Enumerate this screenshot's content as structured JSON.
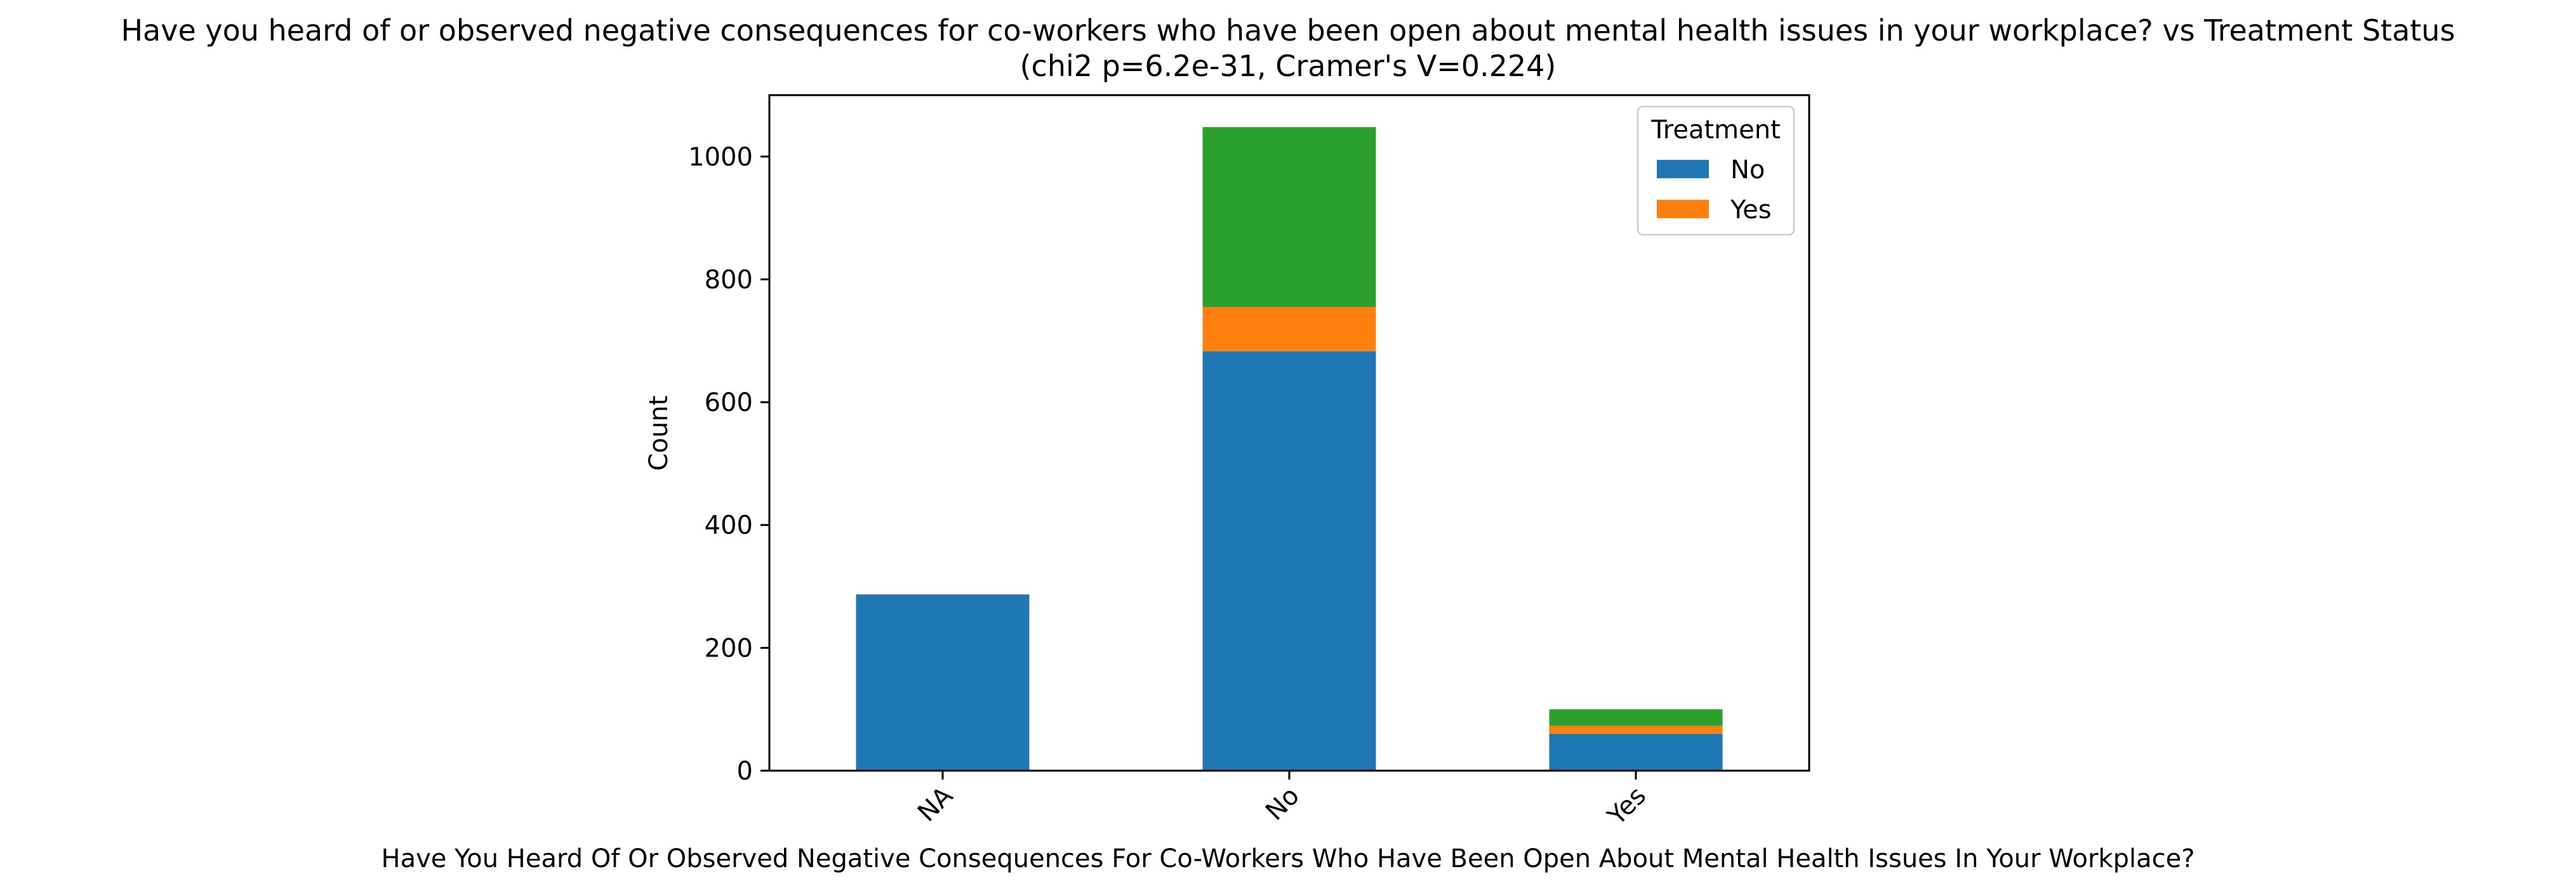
{
  "chart_data": {
    "type": "bar",
    "stacked": true,
    "title": "Have you heard of or observed negative consequences for co-workers who have been open about mental health issues in your workplace? vs Treatment Status",
    "subtitle": "(chi2 p=6.2e-31, Cramer's V=0.224)",
    "xlabel": "Have You Heard Of Or Observed Negative Consequences For Co-Workers Who Have Been Open About Mental Health Issues In Your Workplace?",
    "ylabel": "Count",
    "categories": [
      "NA",
      "No",
      "Yes"
    ],
    "ylim": [
      0,
      1100
    ],
    "yticks": [
      0,
      200,
      400,
      600,
      800,
      1000
    ],
    "grid": false,
    "legend": {
      "title": "Treatment",
      "position": "top-right",
      "entries": [
        "No",
        "Yes"
      ]
    },
    "series": [
      {
        "name": "No",
        "color": "#1f77b4",
        "values": [
          287,
          683,
          60
        ]
      },
      {
        "name": "Yes",
        "color": "#ff7f0e",
        "values": [
          0,
          72,
          13
        ]
      },
      {
        "color": "#2ca02c",
        "values": [
          0,
          293,
          27
        ]
      }
    ]
  }
}
